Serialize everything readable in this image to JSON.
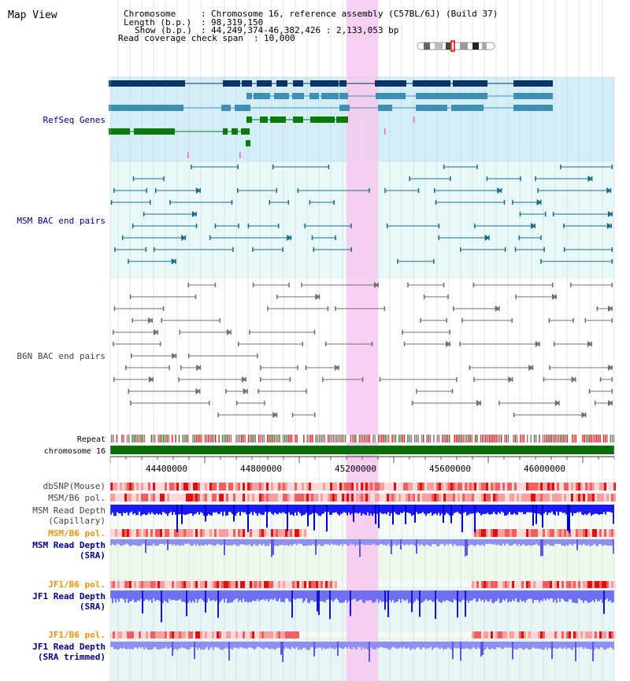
{
  "page_title": "Map View",
  "info": {
    "chromosome_label": "Chromosome",
    "chromosome_value": "Chromosome 16, reference assembly (C57BL/6J) (Build 37)",
    "length_label": "Length (b.p.)",
    "length_value": "98,319,150",
    "show_label": "Show (b.p.)",
    "show_value": "44,249,374-46,382,426 : 2,133,053 bp",
    "coverage_label": "Read coverage check span",
    "coverage_value": "10,000"
  },
  "tracks": {
    "refseq": "RefSeq Genes",
    "msm_bac": "MSM BAC end pairs",
    "b6n_bac": "B6N BAC end pairs",
    "repeat": "Repeat",
    "chromosome": "chromosome 16",
    "dbsnp": "dbSNP(Mouse)",
    "msm_b6_pol": "MSM/B6 pol.",
    "msm_depth_cap_1": "MSM Read Depth",
    "msm_depth_cap_2": "(Capillary)",
    "msm_b6_pol2": "MSM/B6 pol.",
    "msm_depth_sra_1": "MSM Read Depth",
    "msm_depth_sra_2": "(SRA)",
    "jf1_b6_pol": "JF1/B6 pol.",
    "jf1_depth_sra_1": "JF1 Read Depth",
    "jf1_depth_sra_2": "(SRA)",
    "jf1_b6_pol2": "JF1/B6 pol.",
    "jf1_depth_trim_1": "JF1 Read Depth",
    "jf1_depth_trim_2": "(SRA trimmed)"
  },
  "axis_ticks": [
    "44400000",
    "44800000",
    "45200000",
    "45600000",
    "46000000"
  ],
  "colors": {
    "gene_dark": "#0a3366",
    "gene_mid": "#3f8fb5",
    "gene_green": "#0a7a0a",
    "bac_msm": "#1a6b8a",
    "bac_b6n": "#707070",
    "highlight": "#f7c8ef",
    "label_blue": "#00008b",
    "label_orange": "#e8930c"
  }
}
